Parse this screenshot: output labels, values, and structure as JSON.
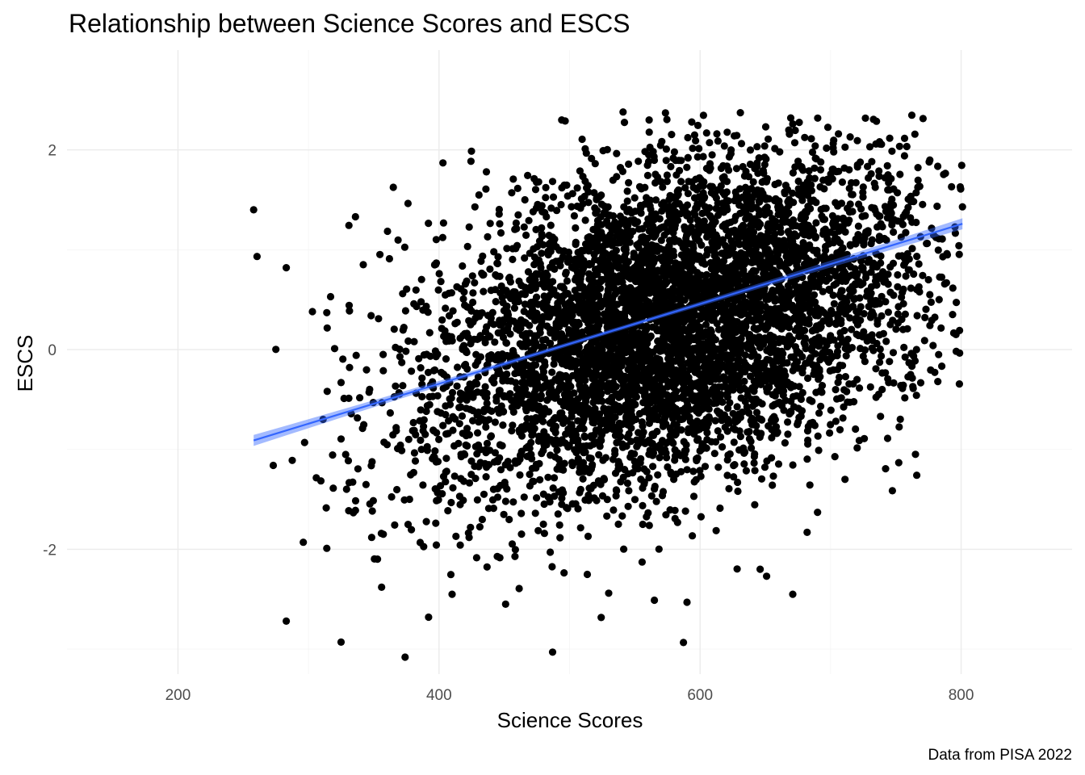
{
  "chart_data": {
    "type": "scatter",
    "title": "Relationship between Science Scores and ESCS",
    "xlabel": "Science Scores",
    "ylabel": "ESCS",
    "caption": "Data from PISA 2022",
    "xlim": [
      115,
      885
    ],
    "ylim": [
      -3.25,
      3.0
    ],
    "xticks": [
      200,
      400,
      600,
      800
    ],
    "xtick_labels": [
      "200",
      "400",
      "600",
      "800"
    ],
    "yticks": [
      -2,
      0,
      2
    ],
    "ytick_labels": [
      "-2",
      "0",
      "2"
    ],
    "grid": true,
    "point_color": "#000000",
    "fit_color": "#3366ff",
    "fit_ribbon_color": "#3366ff",
    "trend_line": {
      "method": "linear",
      "x": [
        258,
        801
      ],
      "y": [
        -0.91,
        1.26
      ],
      "ribbon_halfwidth_end": 0.055,
      "ribbon_halfwidth_mid": 0.02
    },
    "point_cloud": {
      "n": 5500,
      "x_mean": 580,
      "x_sd": 95,
      "x_min": 258,
      "x_max": 801,
      "y_mean": 0.26,
      "y_sd": 0.86,
      "y_min": -3.08,
      "y_max": 2.38,
      "correlation": 0.38
    },
    "series": [
      {
        "values": [
          [
            258,
            1.4
          ],
          [
            283,
            0.82
          ],
          [
            283,
            -2.72
          ],
          [
            273,
            -1.16
          ],
          [
            296,
            -1.93
          ],
          [
            297,
            -0.93
          ],
          [
            314,
            -1.99
          ],
          [
            325,
            -2.93
          ],
          [
            336,
            1.33
          ],
          [
            374,
            -3.08
          ],
          [
            392,
            -2.68
          ],
          [
            403,
            1.87
          ],
          [
            487,
            -3.03
          ],
          [
            494,
            2.3
          ],
          [
            512,
            2.01
          ],
          [
            541,
            2.38
          ],
          [
            561,
            2.3
          ],
          [
            590,
            -2.53
          ],
          [
            605,
            2.17
          ],
          [
            671,
            2.26
          ],
          [
            671,
            -2.45
          ],
          [
            706,
            2.16
          ],
          [
            715,
            2.13
          ],
          [
            763,
            -0.37
          ],
          [
            772,
            0.09
          ],
          [
            776,
            0.55
          ],
          [
            786,
            0.93
          ],
          [
            801,
            1.43
          ],
          [
            744,
            1.75
          ],
          [
            711,
            -1.3
          ],
          [
            690,
            -1.63
          ],
          [
            682,
            -1.83
          ],
          [
            651,
            -2.27
          ],
          [
            646,
            -2.2
          ],
          [
            530,
            -2.44
          ],
          [
            565,
            -2.51
          ],
          [
            410,
            -2.45
          ],
          [
            451,
            -2.55
          ],
          [
            362,
            0.91
          ],
          [
            381,
            -0.81
          ],
          [
            303,
            0.38
          ],
          [
            314,
            0.37
          ],
          [
            320,
            0.01
          ],
          [
            325,
            -0.33
          ],
          [
            342,
            0.85
          ],
          [
            348,
            0.34
          ],
          [
            336,
            -1.61
          ],
          [
            356,
            -2.38
          ]
        ]
      }
    ]
  }
}
